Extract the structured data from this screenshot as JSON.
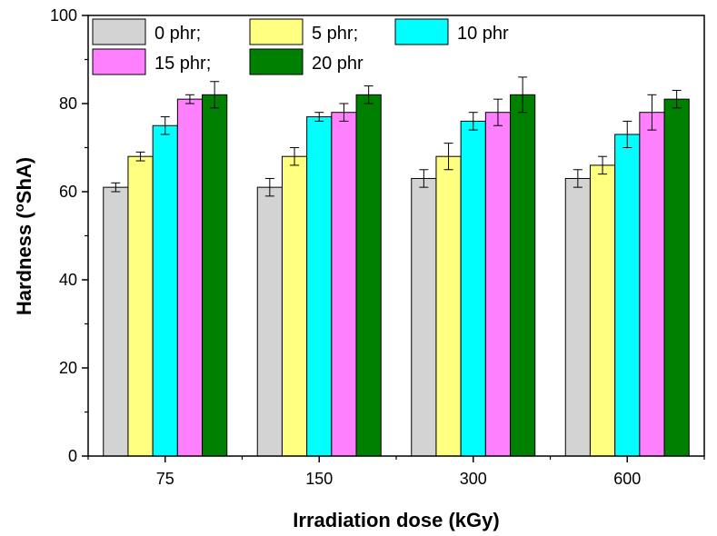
{
  "chart_data": {
    "type": "bar",
    "xlabel": "Irradiation dose (kGy)",
    "ylabel_main": "Hardness (",
    "ylabel_sup": "o",
    "ylabel_rest": "ShA)",
    "categories": [
      "75",
      "150",
      "300",
      "600"
    ],
    "ylim": [
      0,
      100
    ],
    "yticks": [
      "0",
      "20",
      "40",
      "60",
      "80",
      "100"
    ],
    "ytick_values": [
      0,
      20,
      40,
      60,
      80,
      100
    ],
    "grid": false,
    "legend_position": "top-left",
    "error_bars": true,
    "series": [
      {
        "name": "0 phr;",
        "color": "#d3d3d3",
        "values": [
          61,
          61,
          63,
          63
        ],
        "errors": [
          1,
          2,
          2,
          2
        ]
      },
      {
        "name": "5 phr;",
        "color": "#ffff80",
        "values": [
          68,
          68,
          68,
          66
        ],
        "errors": [
          1,
          2,
          3,
          2
        ]
      },
      {
        "name": "10 phr",
        "color": "#00ffff",
        "values": [
          75,
          77,
          76,
          73
        ],
        "errors": [
          2,
          1,
          2,
          3
        ]
      },
      {
        "name": "15 phr;",
        "color": "#ff80ff",
        "values": [
          81,
          78,
          78,
          78
        ],
        "errors": [
          1,
          2,
          3,
          4
        ]
      },
      {
        "name": "20 phr",
        "color": "#008000",
        "values": [
          82,
          82,
          82,
          81
        ],
        "errors": [
          3,
          2,
          4,
          2
        ]
      }
    ]
  }
}
